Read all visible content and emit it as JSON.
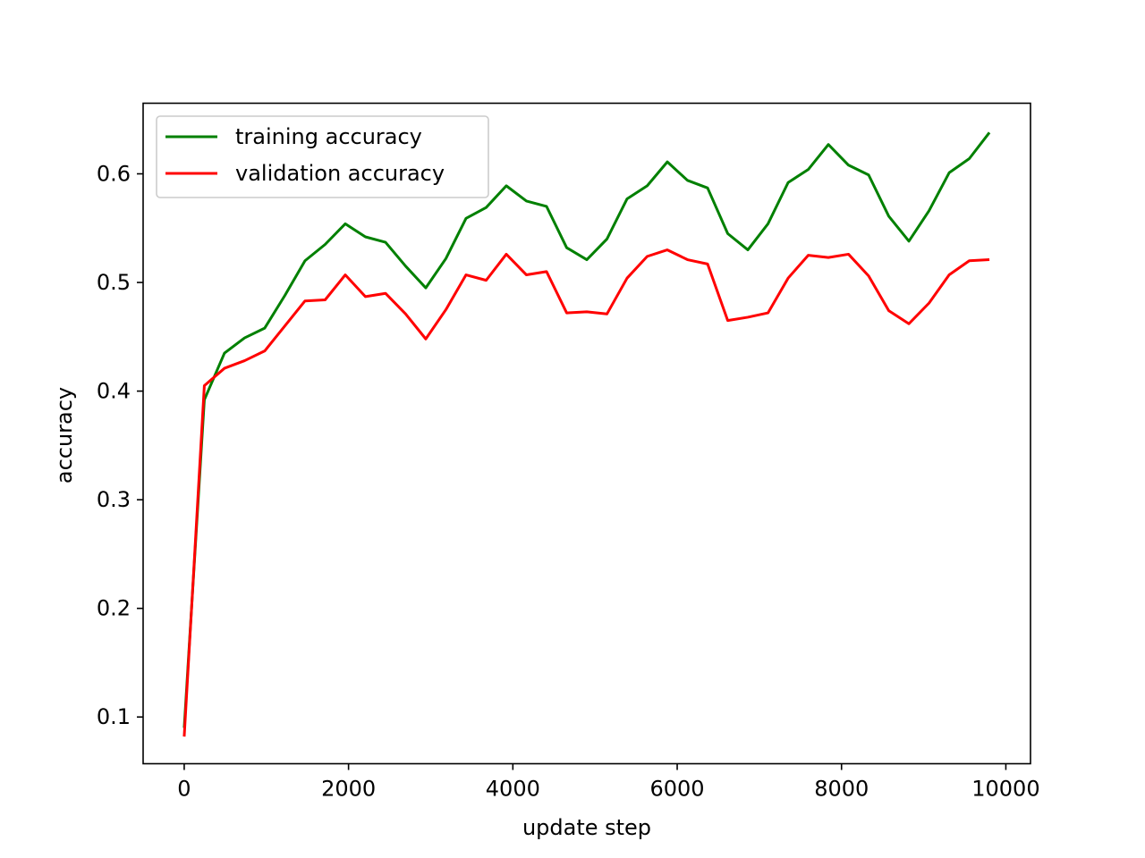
{
  "chart_data": {
    "type": "line",
    "title": "",
    "xlabel": "update step",
    "ylabel": "accuracy",
    "xlim": [
      -500,
      10300
    ],
    "ylim": [
      0.057,
      0.665
    ],
    "xticks": [
      0,
      2000,
      4000,
      6000,
      8000,
      10000
    ],
    "xtick_labels": [
      "0",
      "2000",
      "4000",
      "6000",
      "8000",
      "10000"
    ],
    "yticks": [
      0.1,
      0.2,
      0.3,
      0.4,
      0.5,
      0.6
    ],
    "ytick_labels": [
      "0.1",
      "0.2",
      "0.3",
      "0.4",
      "0.5",
      "0.6"
    ],
    "grid": false,
    "legend_position": "upper-left",
    "x": [
      0,
      245,
      490,
      735,
      980,
      1225,
      1470,
      1715,
      1960,
      2205,
      2450,
      2695,
      2940,
      3185,
      3430,
      3675,
      3920,
      4165,
      4410,
      4655,
      4900,
      5145,
      5390,
      5635,
      5880,
      6125,
      6370,
      6615,
      6860,
      7105,
      7350,
      7595,
      7840,
      8085,
      8330,
      8575,
      8820,
      9065,
      9310,
      9555,
      9800
    ],
    "series": [
      {
        "name": "training accuracy",
        "color": "#008000",
        "values": [
          0.09,
          0.392,
          0.435,
          0.449,
          0.458,
          0.488,
          0.52,
          0.535,
          0.554,
          0.542,
          0.537,
          0.515,
          0.495,
          0.522,
          0.559,
          0.569,
          0.589,
          0.575,
          0.57,
          0.532,
          0.521,
          0.54,
          0.577,
          0.589,
          0.611,
          0.594,
          0.587,
          0.545,
          0.53,
          0.554,
          0.592,
          0.604,
          0.627,
          0.608,
          0.599,
          0.561,
          0.538,
          0.566,
          0.601,
          0.614,
          0.638
        ]
      },
      {
        "name": "validation accuracy",
        "color": "#ff0000",
        "values": [
          0.082,
          0.405,
          0.421,
          0.428,
          0.437,
          0.46,
          0.483,
          0.484,
          0.507,
          0.487,
          0.49,
          0.471,
          0.448,
          0.475,
          0.507,
          0.502,
          0.526,
          0.507,
          0.51,
          0.472,
          0.473,
          0.471,
          0.504,
          0.524,
          0.53,
          0.521,
          0.517,
          0.465,
          0.468,
          0.472,
          0.504,
          0.525,
          0.523,
          0.526,
          0.506,
          0.474,
          0.462,
          0.481,
          0.507,
          0.52,
          0.521
        ]
      }
    ]
  }
}
